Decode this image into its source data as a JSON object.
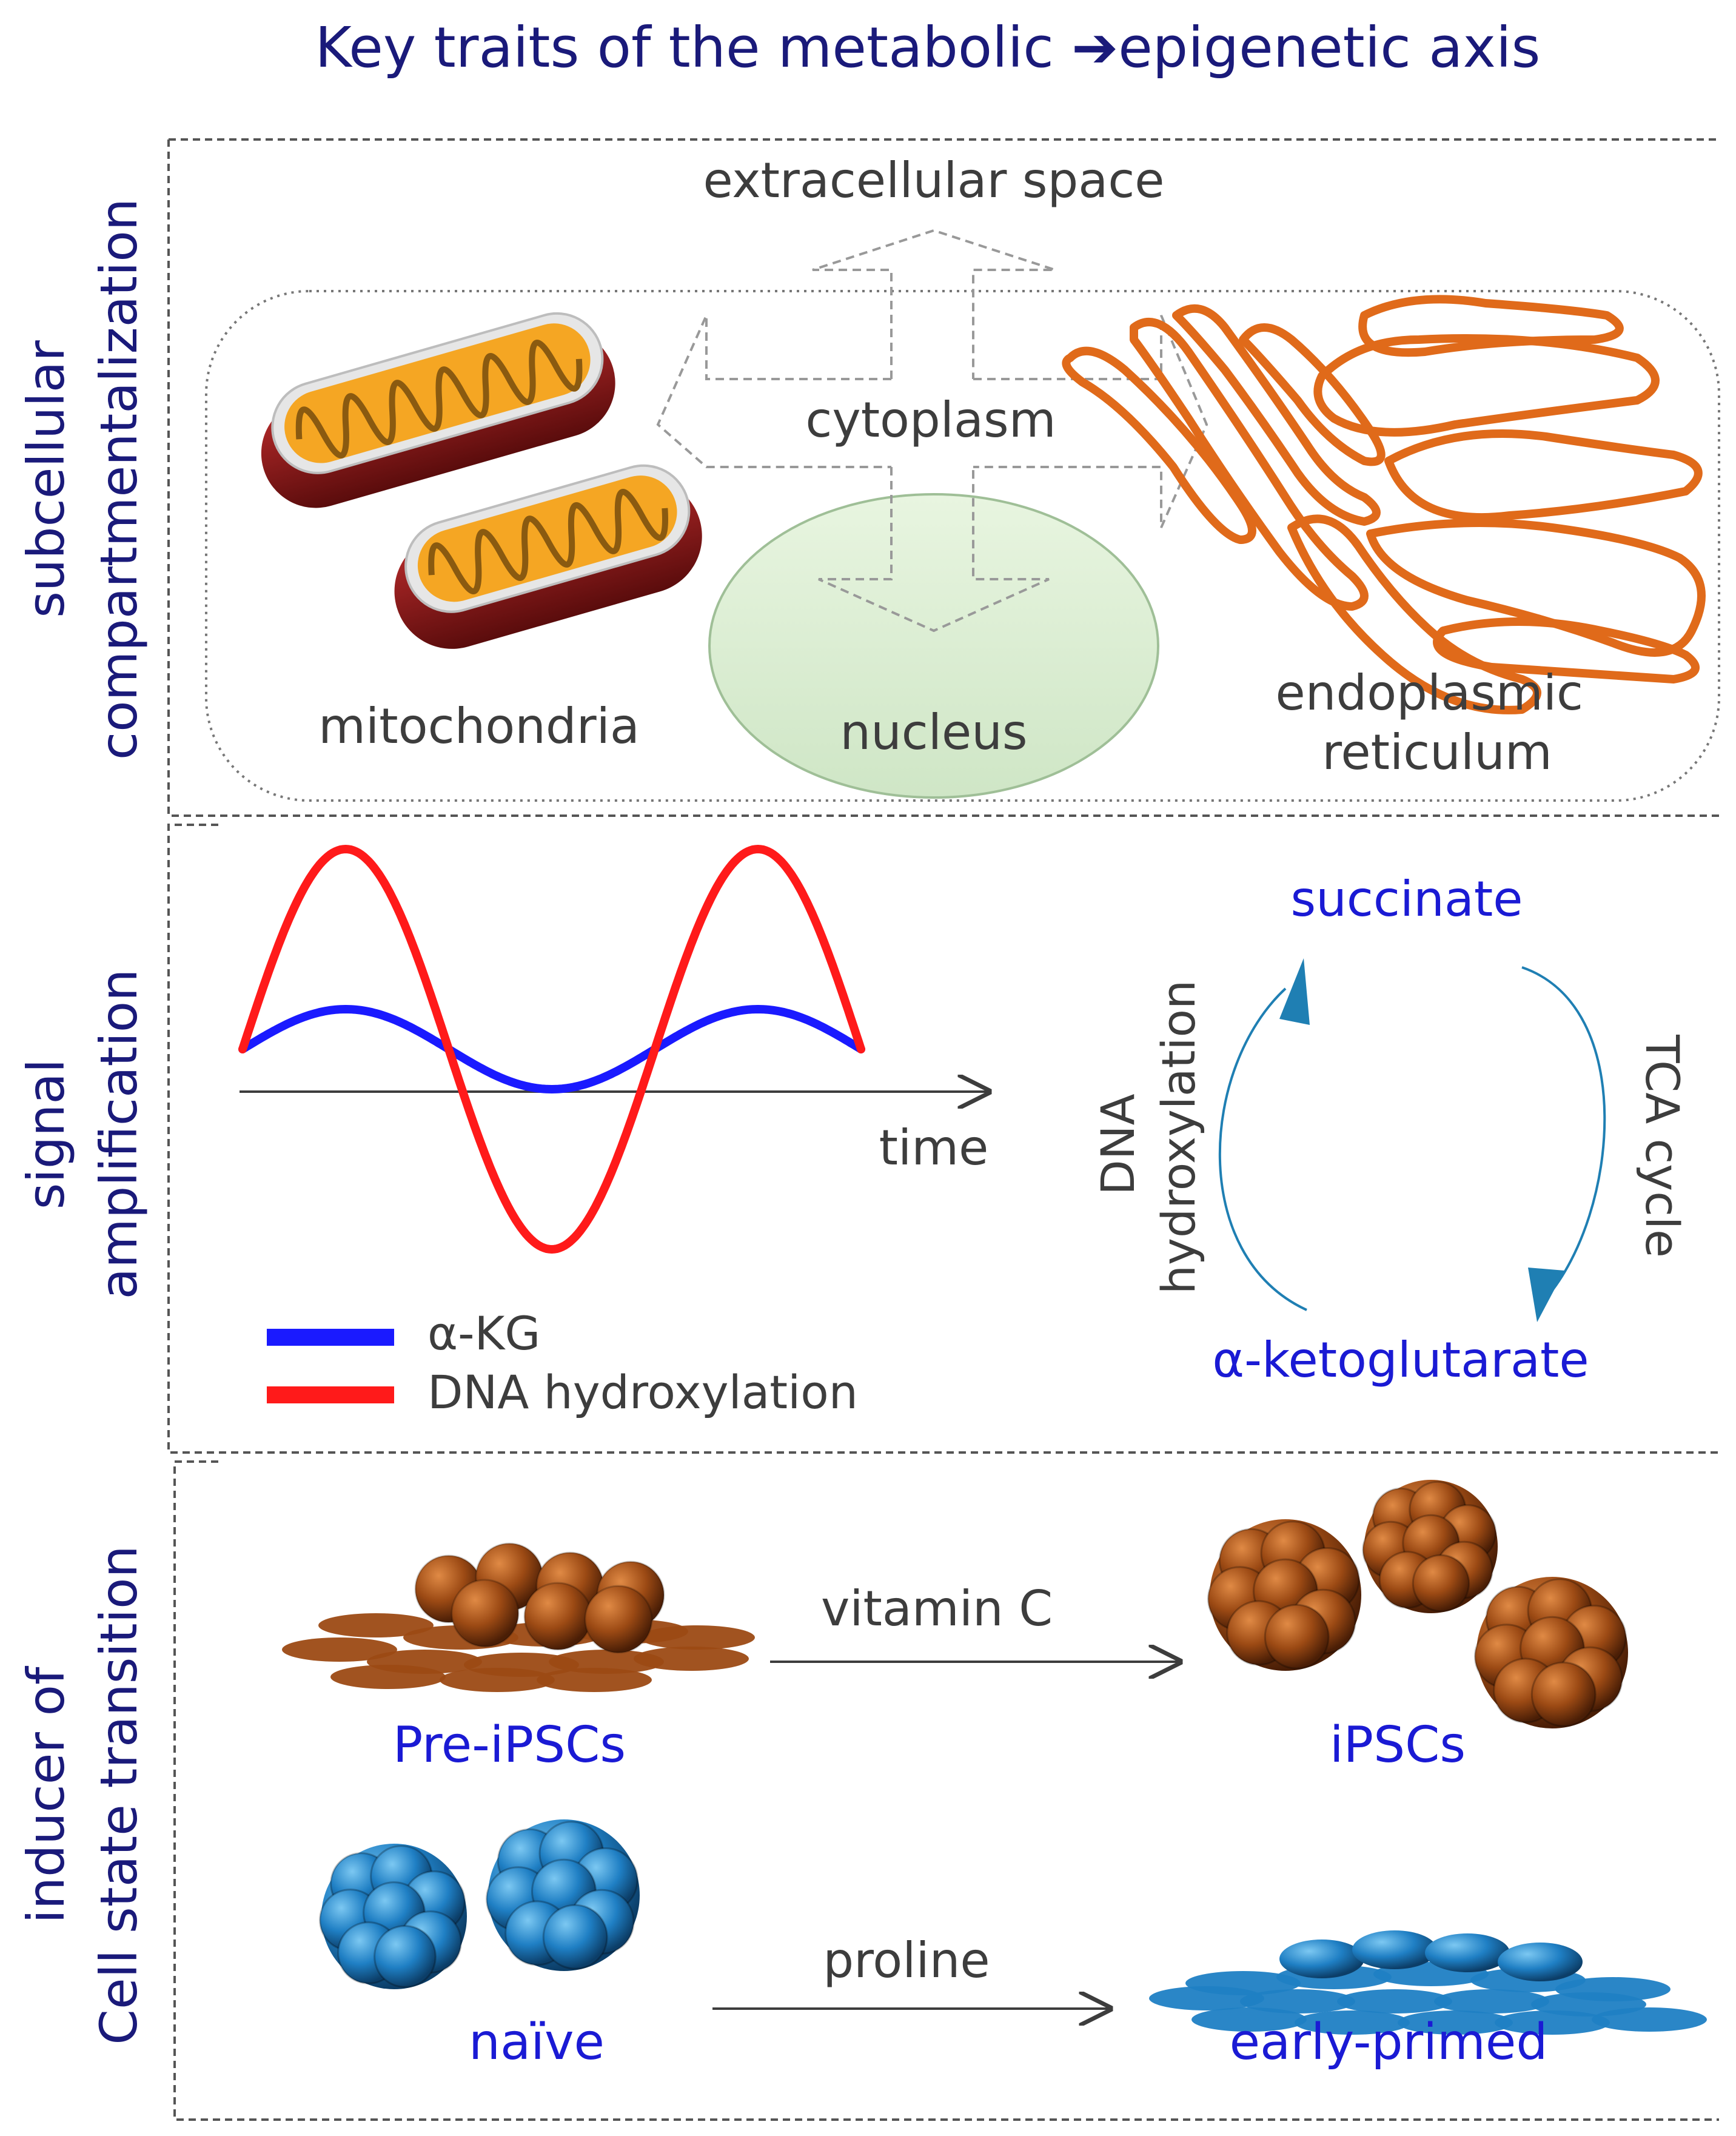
{
  "title": {
    "prefix": "Key traits of the metabolic ",
    "arrow": "➔",
    "suffix": "epigenetic axis"
  },
  "panels": {
    "compartments": {
      "side_label_line1": "subcellular",
      "side_label_line2": "compartmentalization",
      "extracellular": "extracellular space",
      "cytoplasm": "cytoplasm",
      "mitochondria": "mitochondria",
      "nucleus": "nucleus",
      "er_line1": "endoplasmic",
      "er_line2": "reticulum"
    },
    "amplification": {
      "side_label_line1": "signal",
      "side_label_line2": "amplification",
      "time_label": "time",
      "legend": {
        "akg": "α-KG",
        "dna": "DNA hydroxylation"
      },
      "cycle": {
        "top": "succinate",
        "bottom": "α-ketoglutarate",
        "left_line1": "DNA",
        "left_line2": "hydroxylation",
        "right": "TCA cycle"
      }
    },
    "transition": {
      "side_label_line1": "inducer of",
      "side_label_line2": "Cell state transition",
      "row1": {
        "from": "Pre-iPSCs",
        "agent": "vitamin C",
        "to": "iPSCs"
      },
      "row2": {
        "from": "naïve",
        "agent": "proline",
        "to": "early-primed"
      }
    }
  },
  "colors": {
    "title": "#1a1a7a",
    "blue_label": "#1a1ad4",
    "gray_text": "#3d3d3d",
    "red_curve": "#ff1a1a",
    "blue_curve": "#1a1aff",
    "teal": "#1f7fb3",
    "orange_er": "#e06a1a",
    "mito_outer": "#8a1a1a",
    "mito_inner": "#f5a623",
    "nucleus": "#dcefd4",
    "brown_cell": "#9c4a14",
    "blue_cell": "#1f7fc4"
  },
  "chart_data": {
    "type": "line",
    "title": "",
    "xlabel": "time",
    "ylabel": "",
    "x": [
      0,
      0.5,
      1,
      1.5,
      2,
      2.5,
      3
    ],
    "series": [
      {
        "name": "α-KG",
        "values": [
          0,
          0.2,
          0,
          -0.2,
          0,
          0.2,
          0
        ]
      },
      {
        "name": "DNA hydroxylation",
        "values": [
          0,
          1,
          0,
          -1,
          0,
          1,
          0
        ]
      }
    ],
    "ylim": [
      -1.2,
      1.2
    ]
  }
}
